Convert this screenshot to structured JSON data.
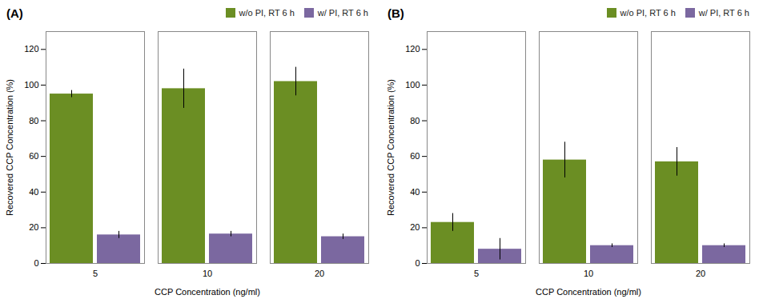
{
  "chart_data": [
    {
      "type": "bar",
      "title": "(A)",
      "categories": [
        "5",
        "10",
        "20"
      ],
      "series": [
        {
          "name": "w/o PI, RT 6 h",
          "color": "#6b8e23",
          "values": [
            95,
            98,
            102
          ],
          "errors": [
            2,
            11,
            8
          ]
        },
        {
          "name": "w/ PI, RT 6 h",
          "color": "#7b68a0",
          "values": [
            16,
            16.5,
            15
          ],
          "errors": [
            2,
            1.5,
            1.5
          ]
        }
      ],
      "xlabel": "CCP Concentration (ng/ml)",
      "ylabel": "Recovered CCP Concentration (%)",
      "ylim": [
        0,
        130
      ],
      "yticks": [
        0,
        20,
        40,
        60,
        80,
        100,
        120
      ],
      "legend": "upper right",
      "grid": false
    },
    {
      "type": "bar",
      "title": "(B)",
      "categories": [
        "5",
        "10",
        "20"
      ],
      "series": [
        {
          "name": "w/o PI, RT 6 h",
          "color": "#6b8e23",
          "values": [
            23,
            58,
            57
          ],
          "errors": [
            5,
            10,
            8
          ]
        },
        {
          "name": "w/ PI, RT 6 h",
          "color": "#7b68a0",
          "values": [
            8,
            10,
            10
          ],
          "errors": [
            6,
            1,
            1
          ]
        }
      ],
      "xlabel": "CCP Concentration (ng/ml)",
      "ylabel": "Recovered CCP Concentration (%)",
      "ylim": [
        0,
        130
      ],
      "yticks": [
        0,
        20,
        40,
        60,
        80,
        100,
        120
      ],
      "legend": "upper right",
      "grid": false
    }
  ]
}
